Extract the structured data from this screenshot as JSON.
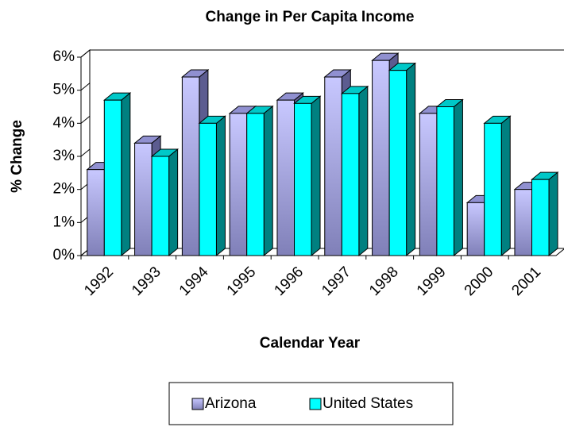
{
  "chart_data": {
    "type": "bar",
    "title": "Change in Per Capita Income",
    "x_label": "Calendar Year",
    "y_label": "% Change",
    "categories": [
      "1992",
      "1993",
      "1994",
      "1995",
      "1996",
      "1997",
      "1998",
      "1999",
      "2000",
      "2001"
    ],
    "series": [
      {
        "name": "Arizona",
        "color": "#b0b0f0",
        "values": [
          2.6,
          3.4,
          5.4,
          4.3,
          4.7,
          5.4,
          5.9,
          4.3,
          1.6,
          2.0
        ]
      },
      {
        "name": "United States",
        "color": "#00ffff",
        "values": [
          4.7,
          3.0,
          4.0,
          4.3,
          4.6,
          4.9,
          5.6,
          4.5,
          4.0,
          2.3
        ]
      }
    ],
    "ylim": [
      0,
      6
    ],
    "yticks": [
      {
        "value": 0,
        "label": "0%"
      },
      {
        "value": 1,
        "label": "1%"
      },
      {
        "value": 2,
        "label": "2%"
      },
      {
        "value": 3,
        "label": "3%"
      },
      {
        "value": 4,
        "label": "4%"
      },
      {
        "value": 5,
        "label": "5%"
      },
      {
        "value": 6,
        "label": "6%"
      }
    ],
    "legend": "bottom"
  }
}
